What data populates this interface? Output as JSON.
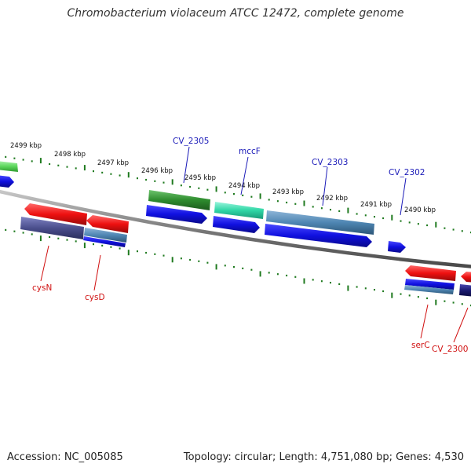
{
  "title": "Chromobacterium violaceum ATCC 12472, complete genome",
  "footer": {
    "accession": "Accession: NC_005085",
    "summary": "Topology: circular; Length: 4,751,080 bp; Genes: 4,530"
  },
  "colors": {
    "backbone": "#8a8a8a",
    "tick": "#1f7a1f",
    "label_plus": "#1a1ab8",
    "label_minus": "#d01010",
    "cds": "#1010e0",
    "gene_green": "#2e8b2e",
    "gene_light_green": "#5bd65b",
    "gene_teal": "#2fd6a6",
    "gene_steelblue": "#4f86b3",
    "gene_red": "#ee1010",
    "gene_slate": "#4a4e8c",
    "gene_navy": "#1a1a70"
  },
  "scale_labels": [
    "2499 kbp",
    "2498 kbp",
    "2497 kbp",
    "2496 kbp",
    "2495 kbp",
    "2494 kbp",
    "2493 kbp",
    "2492 kbp",
    "2491 kbp",
    "2490 kbp"
  ],
  "gene_labels_top": [
    "CV_2305",
    "mccF",
    "CV_2303",
    "CV_2302"
  ],
  "gene_labels_bottom": [
    "cysN",
    "cysD",
    "serC",
    "CV_2300"
  ]
}
